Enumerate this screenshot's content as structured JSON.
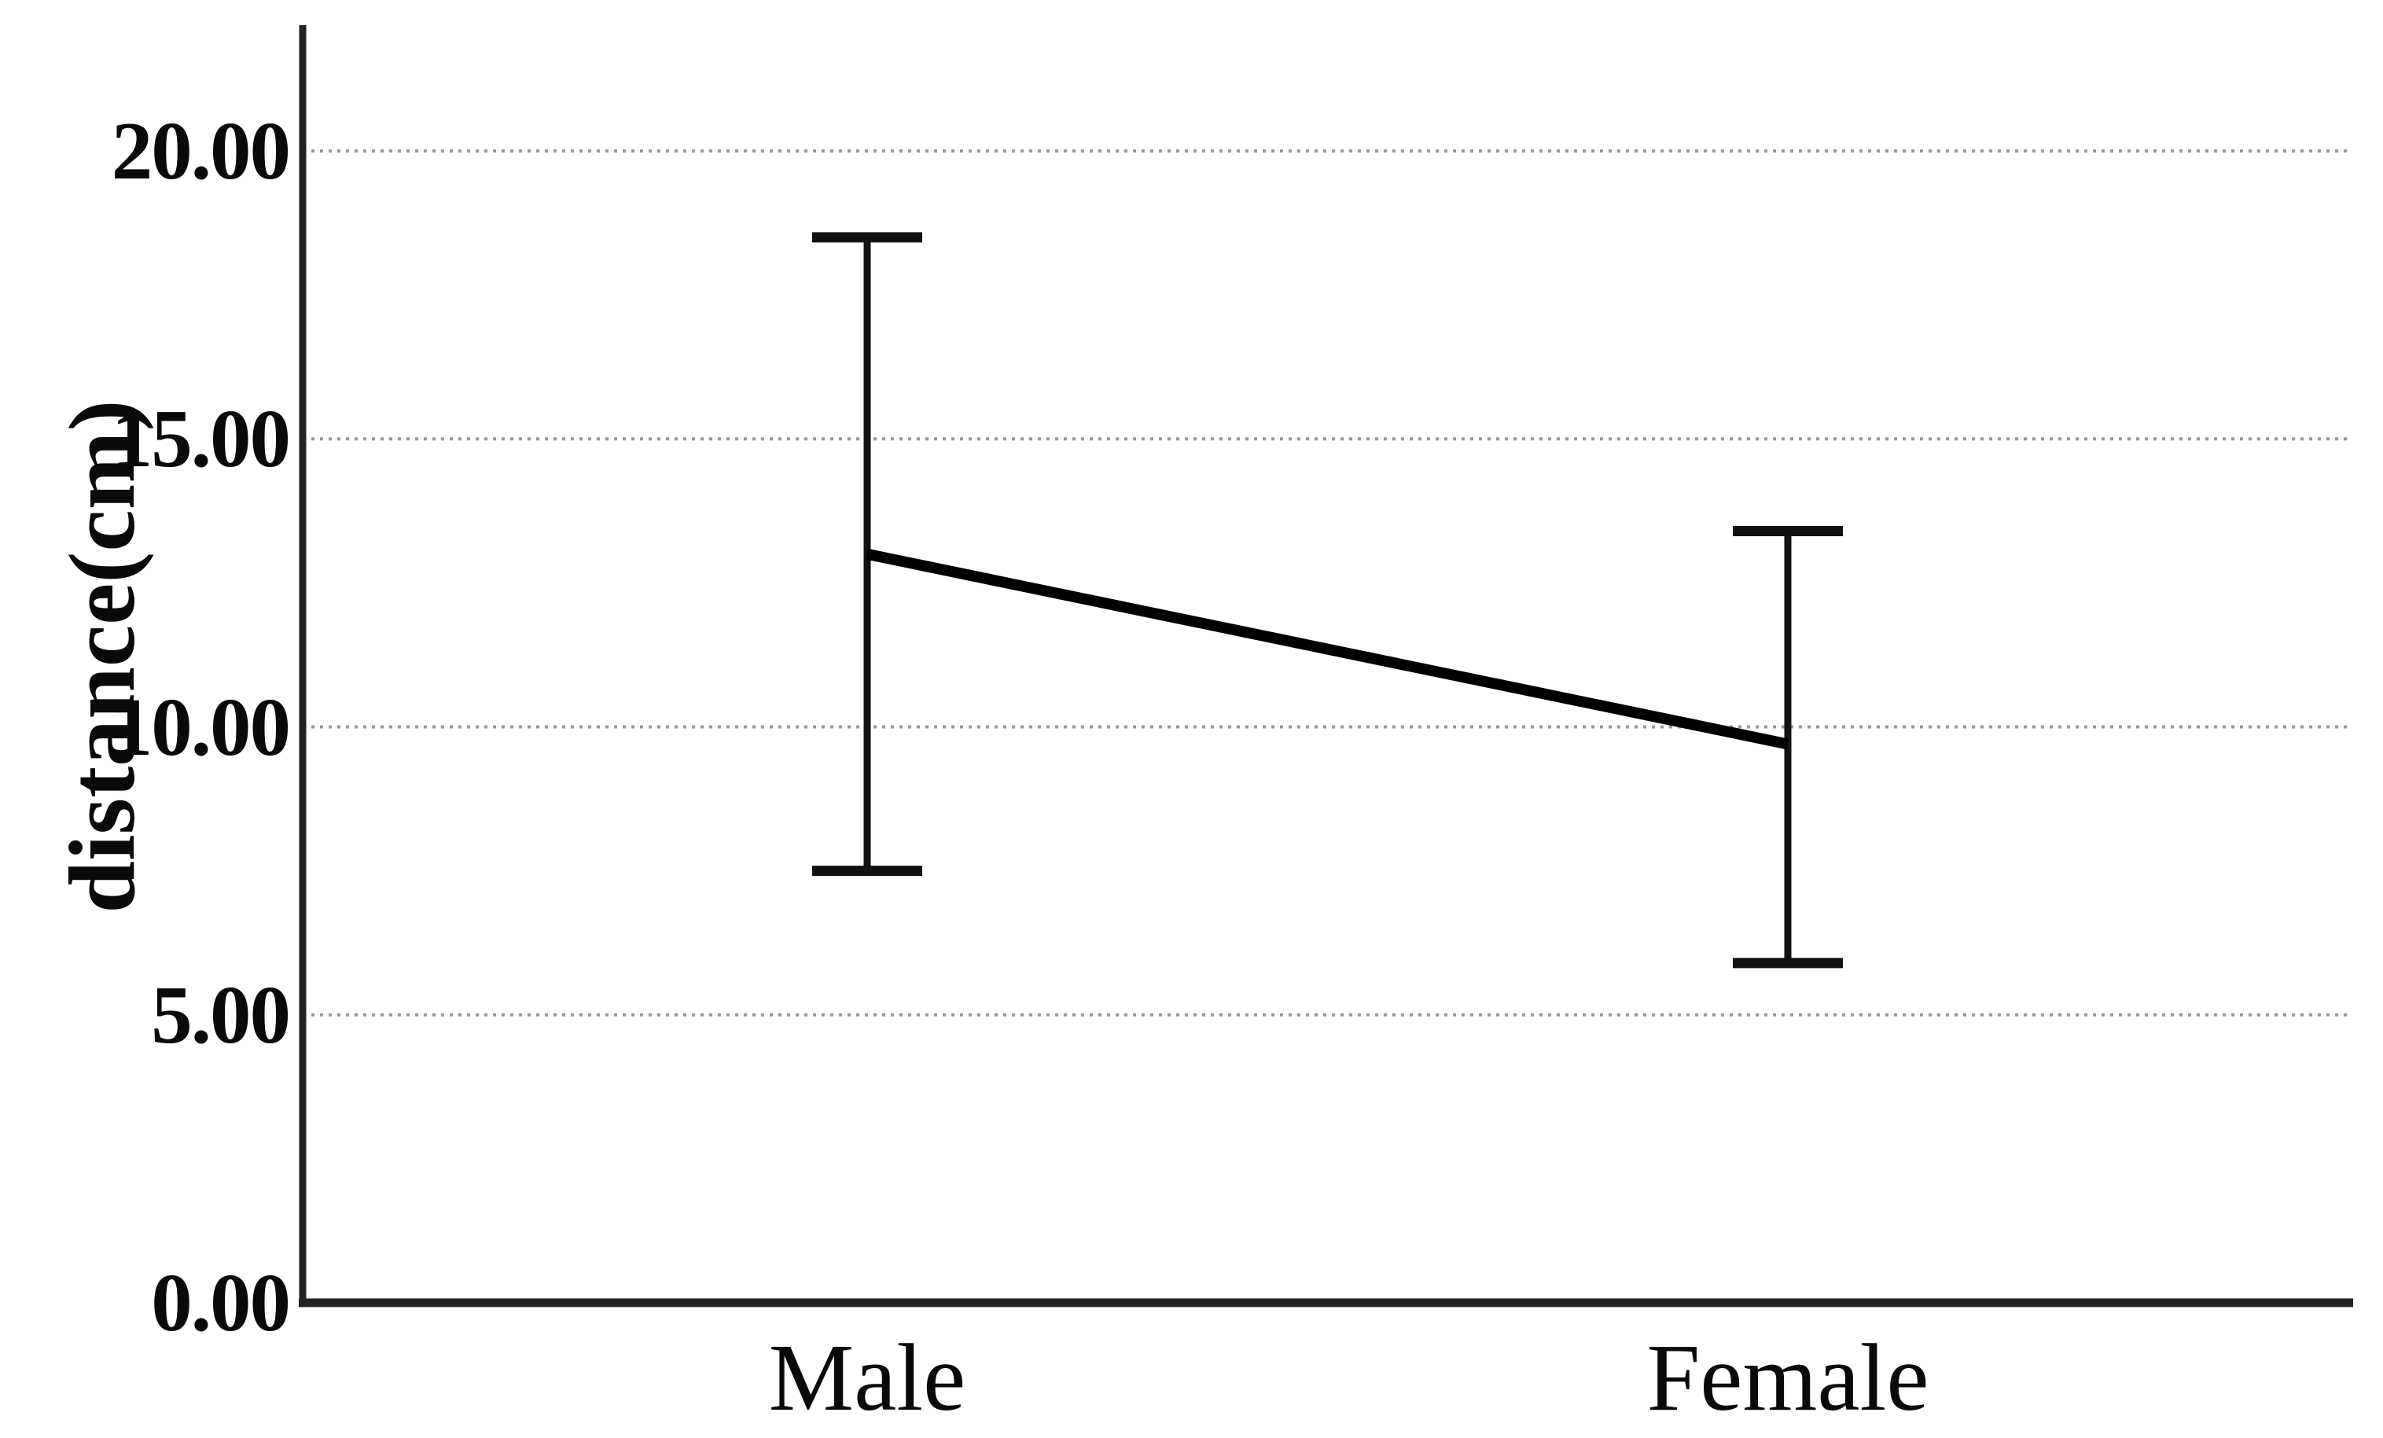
{
  "chart_data": {
    "type": "line",
    "subtype": "means-with-error-bars",
    "title": "",
    "xlabel": "",
    "ylabel": "distance(cm)",
    "categories": [
      "Male",
      "Female"
    ],
    "series": [
      {
        "name": "distance(cm)",
        "means": [
          13.0,
          9.7
        ],
        "ci_lower": [
          7.5,
          5.9
        ],
        "ci_upper": [
          18.5,
          13.4
        ]
      }
    ],
    "yticks": [
      0,
      5,
      10,
      15,
      20
    ],
    "ytick_labels": [
      "0.00",
      "5.00",
      "10.00",
      "15.00",
      "20.00"
    ],
    "ylim": [
      0,
      22.2
    ],
    "grid": "horizontal-dotted",
    "legend": "none",
    "error_bars": true,
    "colors": {
      "line": "#000000",
      "error_bar": "#111111",
      "axis": "#222222",
      "gridline": "#999999",
      "text": "#0a0a0a",
      "background": "#ffffff"
    }
  }
}
